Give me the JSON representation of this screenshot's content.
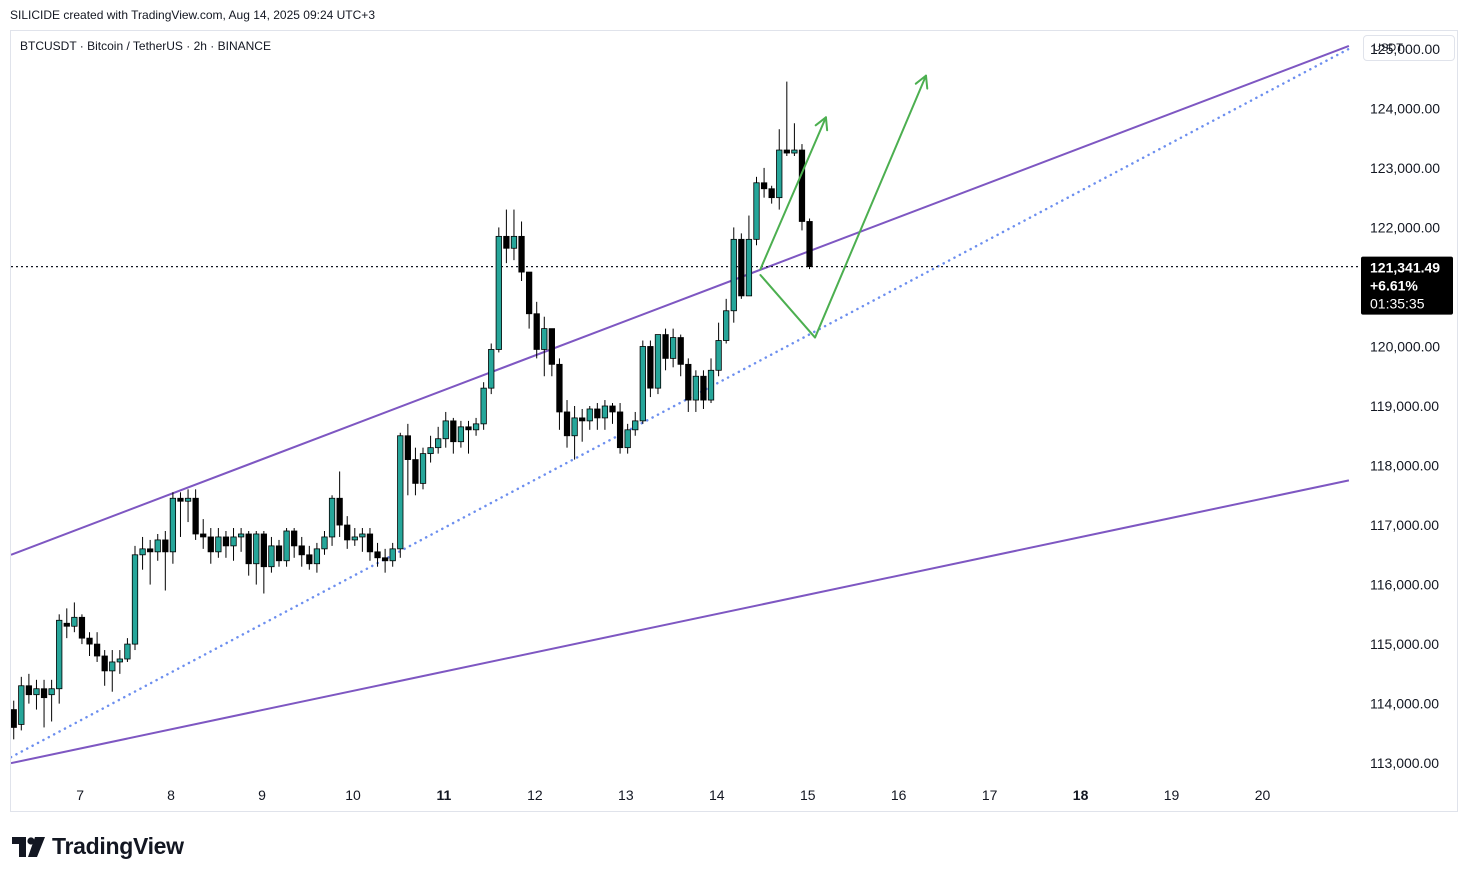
{
  "header": {
    "attribution": "SILICIDE created with TradingView.com, Aug 14, 2025 09:24 UTC+3"
  },
  "chart_data": {
    "type": "candlestick",
    "title": "BTCUSDT · Bitcoin / TetherUS · 2h · BINANCE",
    "currency": "USDT",
    "ylim": [
      112700,
      125300
    ],
    "xlim": [
      6.24,
      21.05
    ],
    "y_ticks": [
      125000,
      124000,
      123000,
      122000,
      120000,
      119000,
      118000,
      117000,
      116000,
      115000,
      114000,
      113000
    ],
    "y_tick_labels": [
      "125,000.00",
      "124,000.00",
      "123,000.00",
      "122,000.00",
      "120,000.00",
      "119,000.00",
      "118,000.00",
      "117,000.00",
      "116,000.00",
      "115,000.00",
      "114,000.00",
      "113,000.00"
    ],
    "x_ticks": [
      {
        "x": 7,
        "label": "7",
        "bold": false
      },
      {
        "x": 8,
        "label": "8",
        "bold": false
      },
      {
        "x": 9,
        "label": "9",
        "bold": false
      },
      {
        "x": 10,
        "label": "10",
        "bold": false
      },
      {
        "x": 11,
        "label": "11",
        "bold": true
      },
      {
        "x": 12,
        "label": "12",
        "bold": false
      },
      {
        "x": 13,
        "label": "13",
        "bold": false
      },
      {
        "x": 14,
        "label": "14",
        "bold": false
      },
      {
        "x": 15,
        "label": "15",
        "bold": false
      },
      {
        "x": 16,
        "label": "16",
        "bold": false
      },
      {
        "x": 17,
        "label": "17",
        "bold": false
      },
      {
        "x": 18,
        "label": "18",
        "bold": true
      },
      {
        "x": 19,
        "label": "19",
        "bold": false
      },
      {
        "x": 20,
        "label": "20",
        "bold": false
      }
    ],
    "candles_start_day": 6.27,
    "candle_step_days": 0.0833333,
    "candles": [
      [
        113900,
        113600,
        114050,
        113400
      ],
      [
        113650,
        114300,
        114450,
        113550
      ],
      [
        114300,
        114150,
        114500,
        114000
      ],
      [
        114150,
        114250,
        114400,
        113900
      ],
      [
        114250,
        114100,
        114400,
        113600
      ],
      [
        114150,
        114250,
        114400,
        113700
      ],
      [
        114250,
        115400,
        115500,
        114000
      ],
      [
        115350,
        115300,
        115600,
        115100
      ],
      [
        115300,
        115450,
        115700,
        115200
      ],
      [
        115450,
        115100,
        115500,
        115000
      ],
      [
        115100,
        115000,
        115200,
        114800
      ],
      [
        115000,
        114800,
        115200,
        114700
      ],
      [
        114800,
        114550,
        114900,
        114300
      ],
      [
        114550,
        114700,
        114900,
        114200
      ],
      [
        114700,
        114750,
        114900,
        114500
      ],
      [
        114750,
        115000,
        115100,
        114700
      ],
      [
        115000,
        116500,
        116650,
        114900
      ],
      [
        116500,
        116600,
        116800,
        116250
      ],
      [
        116600,
        116550,
        116750,
        116000
      ],
      [
        116550,
        116750,
        116850,
        116400
      ],
      [
        116750,
        116550,
        116900,
        115900
      ],
      [
        116550,
        117450,
        117550,
        116350
      ],
      [
        117450,
        117400,
        117550,
        116800
      ],
      [
        117400,
        117450,
        117600,
        117050
      ],
      [
        117450,
        116850,
        117600,
        116750
      ],
      [
        116850,
        116800,
        117100,
        116600
      ],
      [
        116800,
        116550,
        116950,
        116350
      ],
      [
        116550,
        116800,
        116950,
        116450
      ],
      [
        116800,
        116650,
        116900,
        116450
      ],
      [
        116650,
        116800,
        116950,
        116400
      ],
      [
        116800,
        116850,
        116950,
        116550
      ],
      [
        116850,
        116350,
        116900,
        116150
      ],
      [
        116350,
        116850,
        116900,
        116000
      ],
      [
        116850,
        116300,
        116900,
        115850
      ],
      [
        116300,
        116650,
        116800,
        116200
      ],
      [
        116650,
        116400,
        116750,
        116300
      ],
      [
        116400,
        116900,
        116950,
        116300
      ],
      [
        116900,
        116650,
        116950,
        116450
      ],
      [
        116650,
        116500,
        116800,
        116300
      ],
      [
        116500,
        116350,
        116650,
        116250
      ],
      [
        116350,
        116600,
        116700,
        116200
      ],
      [
        116600,
        116800,
        116900,
        116500
      ],
      [
        116800,
        117450,
        117500,
        116650
      ],
      [
        117450,
        117000,
        117900,
        116800
      ],
      [
        117000,
        116750,
        117150,
        116600
      ],
      [
        116750,
        116800,
        116950,
        116650
      ],
      [
        116800,
        116850,
        116950,
        116550
      ],
      [
        116850,
        116550,
        116950,
        116400
      ],
      [
        116550,
        116450,
        116700,
        116300
      ],
      [
        116450,
        116400,
        116600,
        116200
      ],
      [
        116400,
        116600,
        116700,
        116300
      ],
      [
        116600,
        118500,
        118550,
        116450
      ],
      [
        118500,
        118100,
        118700,
        117500
      ],
      [
        118100,
        117700,
        118300,
        117500
      ],
      [
        117700,
        118200,
        118300,
        117600
      ],
      [
        118200,
        118300,
        118500,
        118050
      ],
      [
        118300,
        118450,
        118650,
        118200
      ],
      [
        118450,
        118750,
        118900,
        118300
      ],
      [
        118750,
        118400,
        118800,
        118200
      ],
      [
        118400,
        118650,
        118750,
        118300
      ],
      [
        118650,
        118600,
        118750,
        118200
      ],
      [
        118600,
        118700,
        118800,
        118500
      ],
      [
        118700,
        119300,
        119400,
        118600
      ],
      [
        119300,
        119950,
        120050,
        119200
      ],
      [
        119950,
        121850,
        122000,
        119900
      ],
      [
        121850,
        121650,
        122300,
        121400
      ],
      [
        121650,
        121850,
        122300,
        121450
      ],
      [
        121850,
        121250,
        122100,
        121100
      ],
      [
        121250,
        120550,
        121250,
        120300
      ],
      [
        120550,
        119950,
        120750,
        119800
      ],
      [
        119950,
        120300,
        120500,
        119500
      ],
      [
        120300,
        119700,
        120300,
        119500
      ],
      [
        119700,
        118900,
        119800,
        118600
      ],
      [
        118900,
        118500,
        119100,
        118300
      ],
      [
        118500,
        118800,
        119000,
        118100
      ],
      [
        118800,
        118750,
        118950,
        118400
      ],
      [
        118750,
        118950,
        119000,
        118600
      ],
      [
        118950,
        118800,
        119050,
        118600
      ],
      [
        118800,
        119000,
        119100,
        118600
      ],
      [
        119000,
        118900,
        119050,
        118700
      ],
      [
        118900,
        118300,
        119050,
        118200
      ],
      [
        118300,
        118600,
        118700,
        118200
      ],
      [
        118600,
        118750,
        118900,
        118500
      ],
      [
        118750,
        120000,
        120100,
        118700
      ],
      [
        120000,
        119300,
        120100,
        119150
      ],
      [
        119300,
        120200,
        120200,
        119200
      ],
      [
        120200,
        119800,
        120300,
        119600
      ],
      [
        119800,
        120150,
        120300,
        119650
      ],
      [
        120150,
        119700,
        120200,
        119500
      ],
      [
        119700,
        119100,
        119800,
        118900
      ],
      [
        119100,
        119500,
        119600,
        118900
      ],
      [
        119500,
        119100,
        119600,
        118950
      ],
      [
        119100,
        119600,
        119800,
        119050
      ],
      [
        119600,
        120100,
        120400,
        119500
      ],
      [
        120100,
        120600,
        120800,
        120050
      ],
      [
        120600,
        121800,
        122000,
        120400
      ],
      [
        121800,
        120850,
        121900,
        120800
      ],
      [
        120850,
        121800,
        122200,
        120850
      ],
      [
        121800,
        122750,
        122850,
        121700
      ],
      [
        122750,
        122650,
        123000,
        122500
      ],
      [
        122650,
        122500,
        122700,
        122400
      ],
      [
        122500,
        123300,
        123650,
        122300
      ],
      [
        123300,
        123250,
        124450,
        123200
      ],
      [
        123250,
        123300,
        123750,
        123200
      ],
      [
        123300,
        122100,
        123400,
        121950
      ],
      [
        122100,
        121341.49,
        122150,
        121300
      ]
    ],
    "trend_lines": [
      {
        "name": "upper-channel-line",
        "style": "solid",
        "color": "#7e57c2",
        "points": [
          [
            6.24,
            116500
          ],
          [
            20.95,
            125050
          ]
        ]
      },
      {
        "name": "lower-channel-line",
        "style": "solid",
        "color": "#7e57c2",
        "points": [
          [
            6.24,
            113000
          ],
          [
            20.95,
            117750
          ]
        ]
      },
      {
        "name": "dotted-support-line",
        "style": "dotted",
        "color": "#6d8fef",
        "points": [
          [
            6.24,
            113100
          ],
          [
            20.95,
            125000
          ]
        ]
      }
    ],
    "projection_paths": [
      {
        "name": "projection-short",
        "color": "#4caf50",
        "points": [
          [
            14.48,
            121300
          ],
          [
            15.2,
            123850
          ]
        ]
      },
      {
        "name": "projection-long",
        "color": "#4caf50",
        "points": [
          [
            14.48,
            121200
          ],
          [
            15.08,
            120150
          ],
          [
            16.3,
            124550
          ]
        ]
      }
    ],
    "current_price": {
      "value": 121341.49,
      "price_label": "121,341.49",
      "change_label": "+6.61%",
      "countdown_label": "01:35:35"
    },
    "colors": {
      "up": "#26a69a",
      "down": "#000000",
      "axis_text": "#131722",
      "badge_bg": "#000000",
      "badge_text": "#ffffff"
    }
  },
  "footer": {
    "logo_text": "TradingView"
  }
}
